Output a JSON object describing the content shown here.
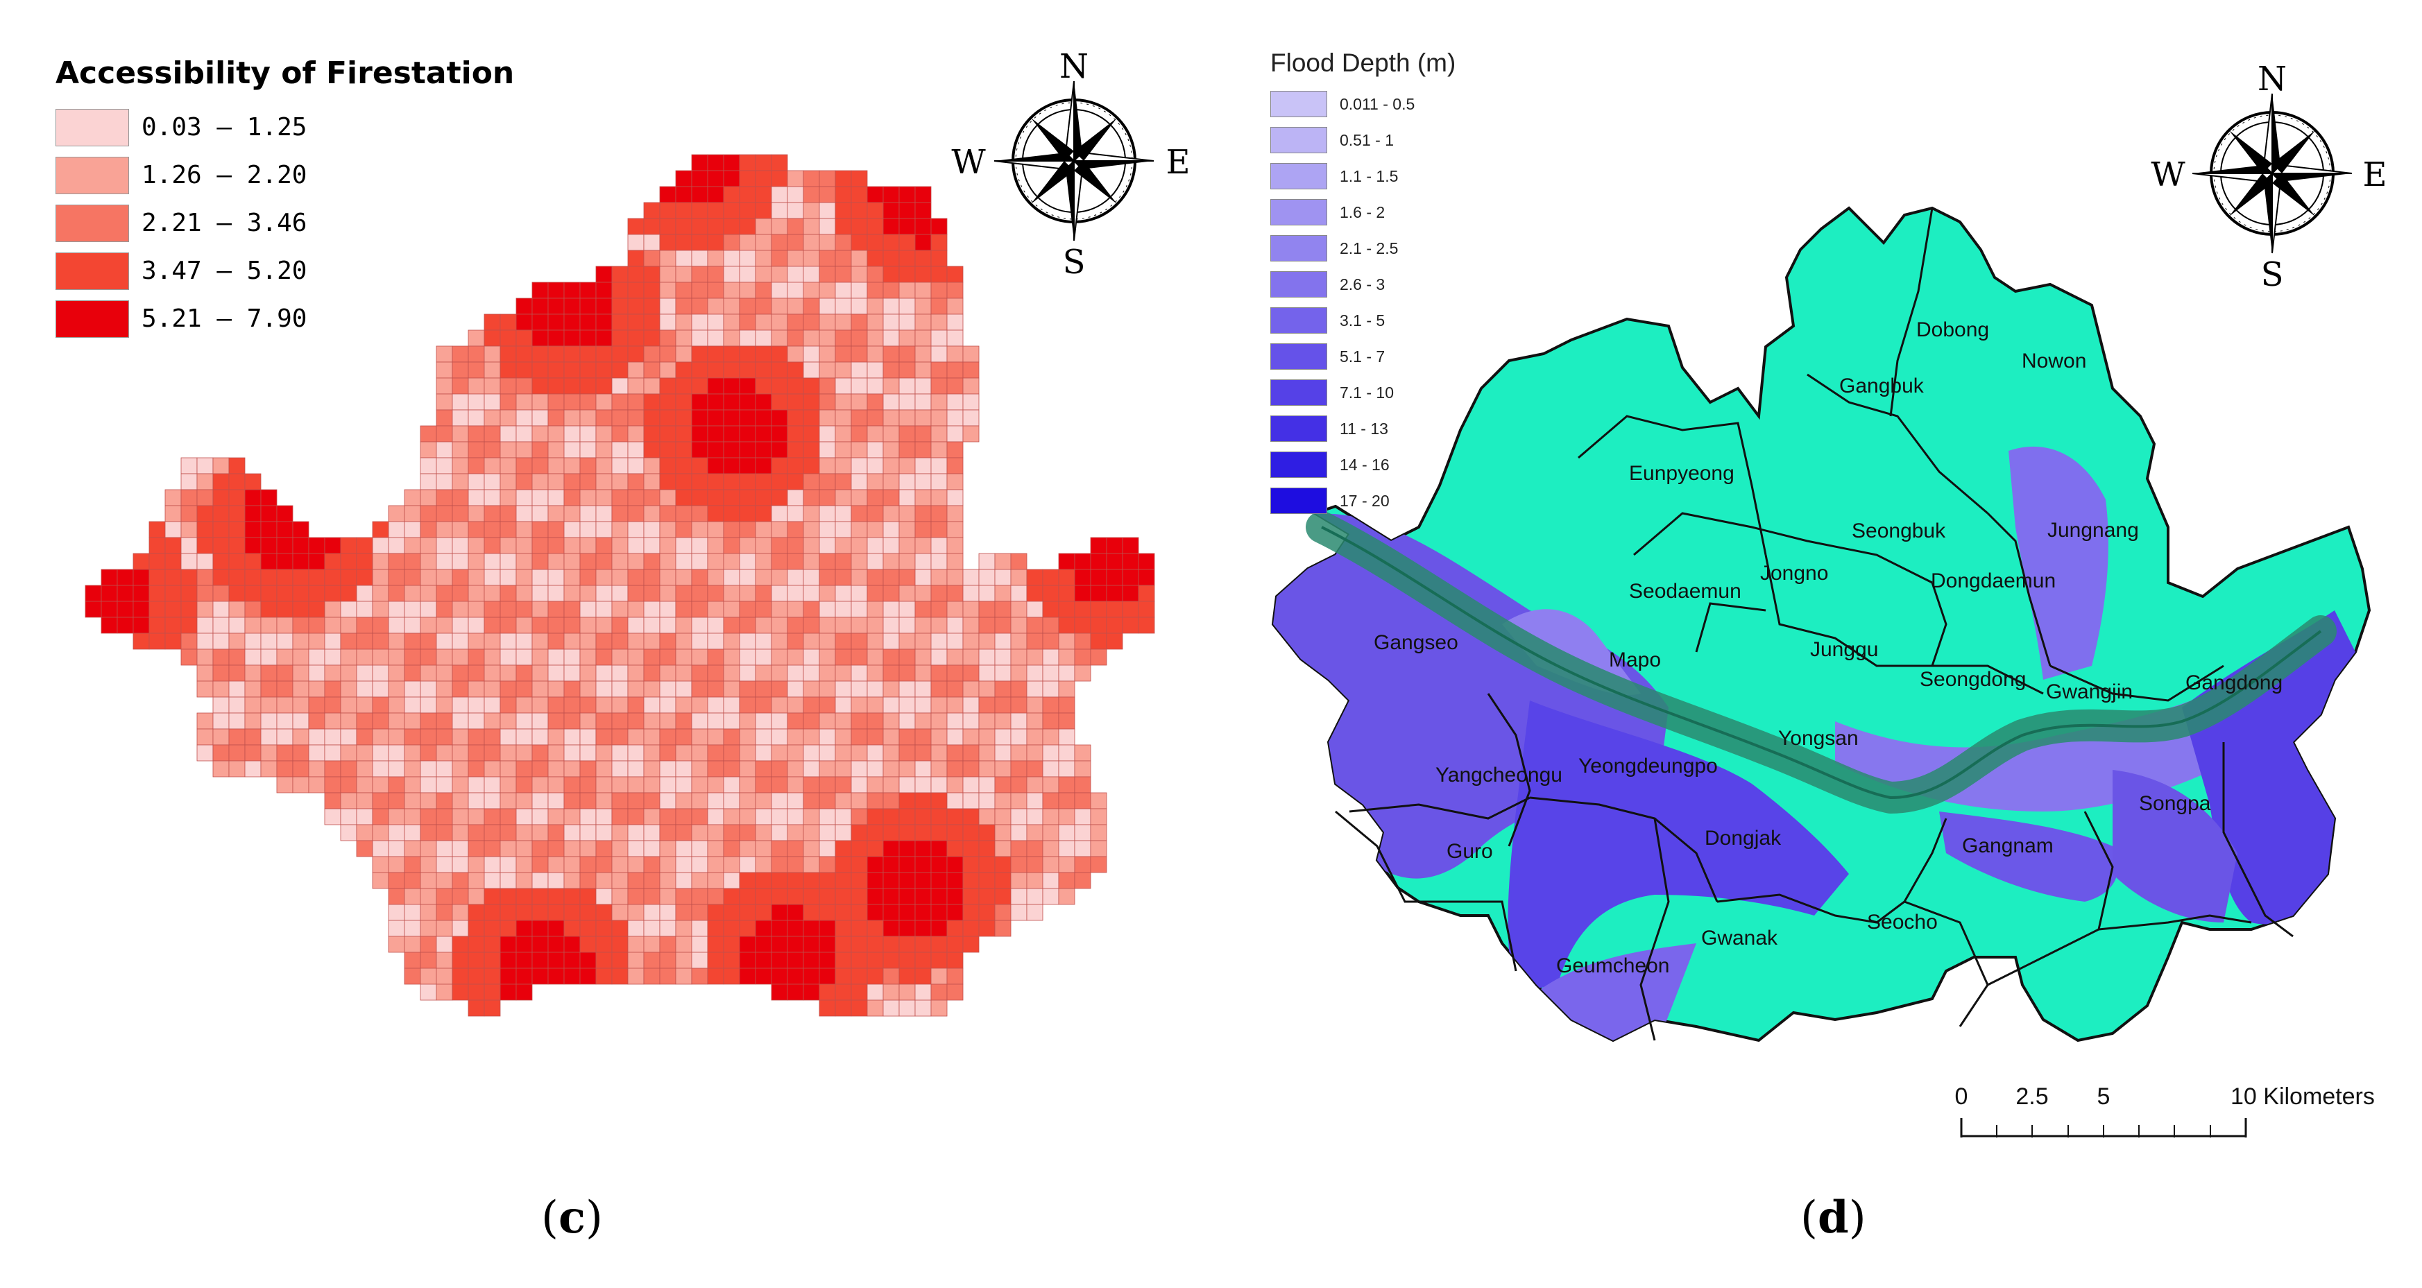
{
  "panel_c": {
    "caption_letter": "c",
    "legend": {
      "title": "Accessibility of Firestation",
      "classes": [
        {
          "label": "0.03 – 1.25",
          "color": "#fbd3d3"
        },
        {
          "label": "1.26 – 2.20",
          "color": "#f9a396"
        },
        {
          "label": "2.21 – 3.46",
          "color": "#f67563"
        },
        {
          "label": "3.47 – 5.20",
          "color": "#f34632"
        },
        {
          "label": "5.21 – 7.90",
          "color": "#e8000b"
        }
      ]
    },
    "compass": {
      "n": "N",
      "s": "S",
      "e": "E",
      "w": "W"
    }
  },
  "panel_d": {
    "caption_letter": "d",
    "legend": {
      "title": "Flood Depth (m)",
      "classes": [
        {
          "label": "0.011 - 0.5",
          "color": "#c9c3f7"
        },
        {
          "label": "0.51 - 1",
          "color": "#bcb4f5"
        },
        {
          "label": "1.1 - 1.5",
          "color": "#ada4f3"
        },
        {
          "label": "1.6 - 2",
          "color": "#9f93f1"
        },
        {
          "label": "2.1 - 2.5",
          "color": "#9184ef"
        },
        {
          "label": "2.6 - 3",
          "color": "#8373ed"
        },
        {
          "label": "3.1 - 5",
          "color": "#7463eb"
        },
        {
          "label": "5.1 - 7",
          "color": "#6552e9"
        },
        {
          "label": "7.1 - 10",
          "color": "#5541e7"
        },
        {
          "label": "11 - 13",
          "color": "#4430e5"
        },
        {
          "label": "14 - 16",
          "color": "#2f1ee3"
        },
        {
          "label": "17 - 20",
          "color": "#1e0de0"
        }
      ]
    },
    "compass": {
      "n": "N",
      "s": "S",
      "e": "E",
      "w": "W"
    },
    "land_color": "#1deec1",
    "districts": [
      "Dobong",
      "Nowon",
      "Gangbuk",
      "Eunpyeong",
      "Seongbuk",
      "Jungnang",
      "Jongno",
      "Seodaemun",
      "Dongdaemun",
      "Gangseo",
      "Mapo",
      "Junggu",
      "Seongdong",
      "Gwangjin",
      "Gangdong",
      "Yongsan",
      "Yangcheongu",
      "Yeongdeungpo",
      "Songpa",
      "Guro",
      "Dongjak",
      "Gangnam",
      "Seocho",
      "Gwanak",
      "Geumcheon"
    ],
    "scale_bar": {
      "ticks": [
        "0",
        "2.5",
        "5"
      ],
      "end_label": "10 Kilometers"
    }
  }
}
